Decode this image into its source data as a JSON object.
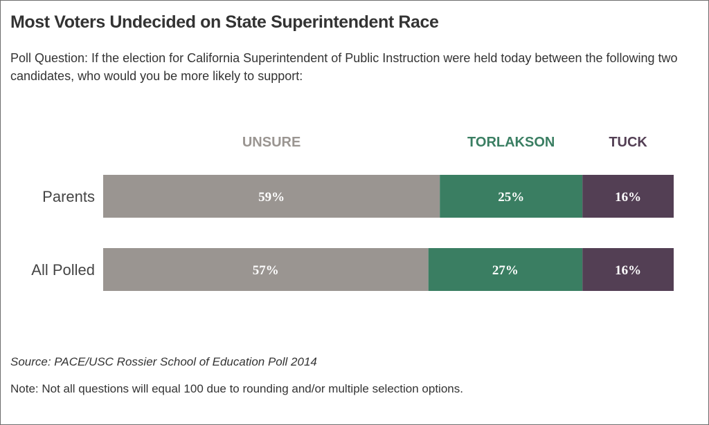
{
  "chart_data": {
    "type": "bar",
    "orientation": "horizontal",
    "stacked": true,
    "title": "Most Voters Undecided on State Superintendent Race",
    "subtitle": "Poll Question: If the election for California Superintendent of Public Instruction were held today between the following two candidates, who would you be more likely to support:",
    "categories": [
      "Parents",
      "All Polled"
    ],
    "series": [
      {
        "name": "UNSURE",
        "color": "#9a9591",
        "values": [
          59,
          57
        ],
        "labels": [
          "59%",
          "57%"
        ]
      },
      {
        "name": "TORLAKSON",
        "color": "#3a7e62",
        "values": [
          25,
          27
        ],
        "labels": [
          "25%",
          "27%"
        ]
      },
      {
        "name": "TUCK",
        "color": "#533f54",
        "values": [
          16,
          16
        ],
        "labels": [
          "16%",
          "16%"
        ]
      }
    ],
    "xlim": [
      0,
      100
    ],
    "grid": false,
    "legend": "top",
    "source": "Source:  PACE/USC Rossier School of Education Poll 2014",
    "note": "Note: Not all questions will equal 100 due to rounding and/or multiple selection options."
  }
}
